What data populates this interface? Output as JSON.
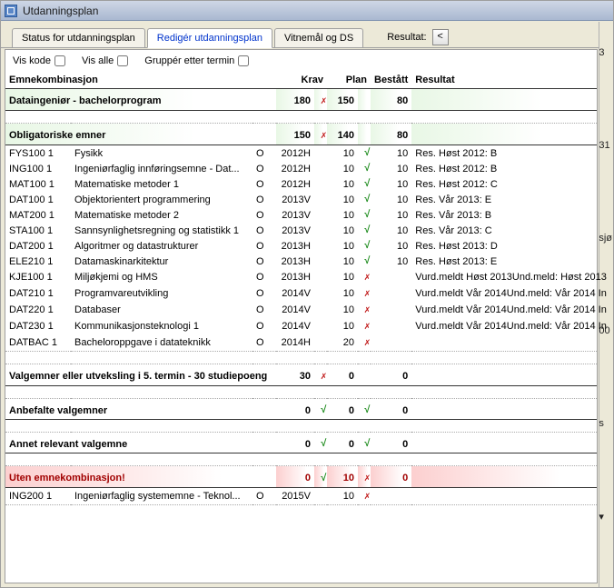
{
  "window": {
    "title": "Utdanningsplan"
  },
  "tabs": {
    "status": "Status for utdanningsplan",
    "rediger": "Redigér utdanningsplan",
    "vitnemal": "Vitnemål og DS"
  },
  "resultat": {
    "label": "Resultat:",
    "button": "<"
  },
  "toolbar": {
    "viskode": "Vis kode",
    "visalle": "Vis alle",
    "grupper": "Gruppér etter termin"
  },
  "headers": {
    "emnekombinasjon": "Emnekombinasjon",
    "krav": "Krav",
    "plan": "Plan",
    "bestatt": "Bestått",
    "resultat": "Resultat"
  },
  "sections": [
    {
      "id": "program",
      "title": "Dataingeniør - bachelorprogram",
      "style": "green",
      "first": true,
      "krav": "180",
      "krav_mark": "bad",
      "plan": "150",
      "plan_mark": "",
      "bestatt": "80",
      "resultat": "",
      "rows": []
    },
    {
      "id": "oblig",
      "title": "Obligatoriske emner",
      "style": "green",
      "krav": "150",
      "krav_mark": "bad",
      "plan": "140",
      "plan_mark": "",
      "bestatt": "80",
      "resultat": "",
      "rows": [
        {
          "code": "FYS100 1",
          "name": "Fysikk",
          "o": "O",
          "krav": "2012H",
          "plan": "10",
          "pmark": "ok",
          "best": "10",
          "res": "Res. Høst 2012: B"
        },
        {
          "code": "ING100 1",
          "name": "Ingeniørfaglig innføringsemne - Dat...",
          "o": "O",
          "krav": "2012H",
          "plan": "10",
          "pmark": "ok",
          "best": "10",
          "res": "Res. Høst 2012: B"
        },
        {
          "code": "MAT100 1",
          "name": "Matematiske metoder 1",
          "o": "O",
          "krav": "2012H",
          "plan": "10",
          "pmark": "ok",
          "best": "10",
          "res": "Res. Høst 2012: C"
        },
        {
          "code": "DAT100 1",
          "name": "Objektorientert programmering",
          "o": "O",
          "krav": "2013V",
          "plan": "10",
          "pmark": "ok",
          "best": "10",
          "res": "Res. Vår 2013: E"
        },
        {
          "code": "MAT200 1",
          "name": "Matematiske metoder 2",
          "o": "O",
          "krav": "2013V",
          "plan": "10",
          "pmark": "ok",
          "best": "10",
          "res": "Res. Vår 2013: B"
        },
        {
          "code": "STA100 1",
          "name": "Sannsynlighetsregning og statistikk 1",
          "o": "O",
          "krav": "2013V",
          "plan": "10",
          "pmark": "ok",
          "best": "10",
          "res": "Res. Vår 2013: C"
        },
        {
          "code": "DAT200 1",
          "name": "Algoritmer og datastrukturer",
          "o": "O",
          "krav": "2013H",
          "plan": "10",
          "pmark": "ok",
          "best": "10",
          "res": "Res. Høst 2013: D"
        },
        {
          "code": "ELE210 1",
          "name": "Datamaskinarkitektur",
          "o": "O",
          "krav": "2013H",
          "plan": "10",
          "pmark": "ok",
          "best": "10",
          "res": "Res. Høst 2013: E"
        },
        {
          "code": "KJE100 1",
          "name": "Miljøkjemi og HMS",
          "o": "O",
          "krav": "2013H",
          "plan": "10",
          "pmark": "bad",
          "best": "",
          "res": "Vurd.meldt Høst 2013Und.meld: Høst 2013"
        },
        {
          "code": "DAT210 1",
          "name": "Programvareutvikling",
          "o": "O",
          "krav": "2014V",
          "plan": "10",
          "pmark": "bad",
          "best": "",
          "res": "Vurd.meldt Vår 2014Und.meld: Vår 2014 In"
        },
        {
          "code": "DAT220 1",
          "name": "Databaser",
          "o": "O",
          "krav": "2014V",
          "plan": "10",
          "pmark": "bad",
          "best": "",
          "res": "Vurd.meldt Vår 2014Und.meld: Vår 2014 In"
        },
        {
          "code": "DAT230 1",
          "name": "Kommunikasjonsteknologi 1",
          "o": "O",
          "krav": "2014V",
          "plan": "10",
          "pmark": "bad",
          "best": "",
          "res": "Vurd.meldt Vår 2014Und.meld: Vår 2014 In"
        },
        {
          "code": "DATBAC 1",
          "name": "Bacheloroppgave i datateknikk",
          "o": "O",
          "krav": "2014H",
          "plan": "20",
          "pmark": "bad",
          "best": "",
          "res": ""
        }
      ]
    },
    {
      "id": "valg5",
      "title": "Valgemner eller utveksling i 5. termin - 30 studiepoeng",
      "style": "plain",
      "krav": "30",
      "krav_mark": "bad",
      "plan": "0",
      "plan_mark": "",
      "bestatt": "0",
      "resultat": "",
      "rows": []
    },
    {
      "id": "anbefalt",
      "title": "Anbefalte valgemner",
      "style": "plain",
      "krav": "0",
      "krav_mark": "ok",
      "plan": "0",
      "plan_mark": "ok",
      "bestatt": "0",
      "resultat": "",
      "rows": []
    },
    {
      "id": "annet",
      "title": "Annet relevant valgemne",
      "style": "plain",
      "krav": "0",
      "krav_mark": "ok",
      "plan": "0",
      "plan_mark": "ok",
      "bestatt": "0",
      "resultat": "",
      "rows": []
    },
    {
      "id": "uten",
      "title": "Uten emnekombinasjon!",
      "style": "red",
      "krav": "0",
      "krav_mark": "ok",
      "plan": "10",
      "plan_mark": "bad",
      "bestatt": "0",
      "resultat": "",
      "rows": [
        {
          "code": "ING200 1",
          "name": "Ingeniørfaglig systememne - Teknol...",
          "o": "O",
          "krav": "2015V",
          "plan": "10",
          "pmark": "bad",
          "best": "",
          "res": ""
        }
      ]
    }
  ],
  "rightFragments": [
    "3",
    "31",
    "sjø",
    "00",
    "s",
    "▾"
  ]
}
